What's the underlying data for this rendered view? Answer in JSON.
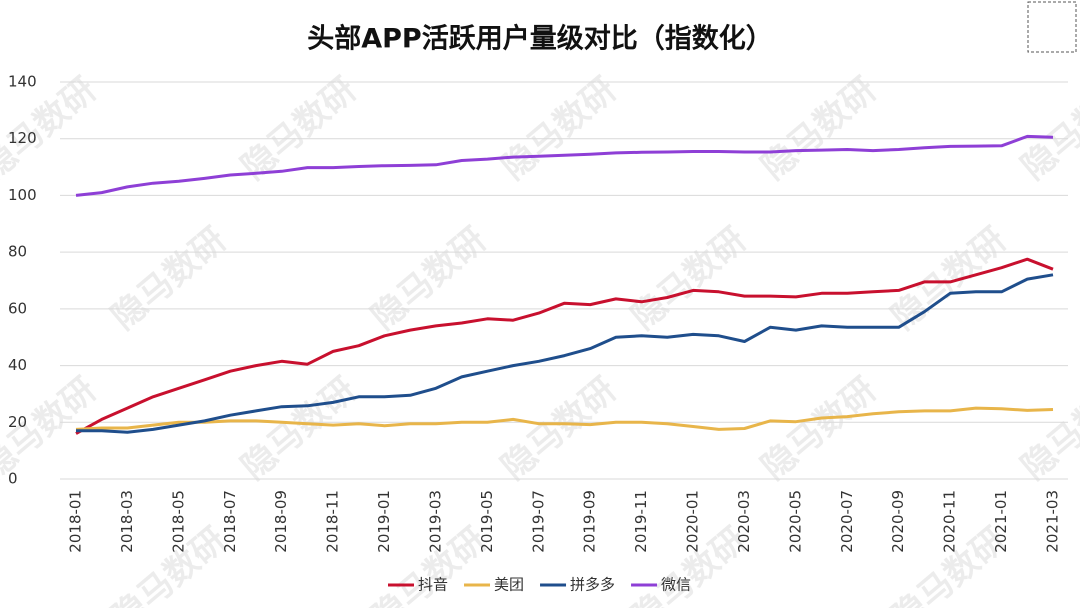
{
  "chart_data": {
    "type": "line",
    "title": "头部APP活跃用户量级对比（指数化）",
    "watermark": "隐马数研",
    "categories": [
      "2018-01",
      null,
      "2018-03",
      null,
      "2018-05",
      null,
      "2018-07",
      null,
      "2018-09",
      null,
      "2018-11",
      null,
      "2019-01",
      null,
      "2019-03",
      null,
      "2019-05",
      null,
      "2019-07",
      null,
      "2019-09",
      null,
      "2019-11",
      null,
      "2020-01",
      null,
      "2020-03",
      null,
      "2020-05",
      null,
      "2020-07",
      null,
      "2020-09",
      null,
      "2020-11",
      null,
      "2021-01",
      null,
      "2021-03"
    ],
    "series": [
      {
        "name": "抖音",
        "color": "#c8102e",
        "values": [
          16,
          21,
          25,
          29,
          32,
          35,
          38,
          40,
          41.5,
          40.5,
          45,
          47,
          50.5,
          52.5,
          54,
          55,
          56.5,
          56,
          58.5,
          62,
          61.5,
          63.5,
          62.5,
          64,
          66.5,
          66,
          64.5,
          64.5,
          64.2,
          65.5,
          65.5,
          66,
          66.5,
          69.5,
          69.5,
          72,
          74.5,
          77.5,
          74
        ]
      },
      {
        "name": "美团",
        "color": "#e8b54a",
        "values": [
          17.5,
          18,
          18,
          19,
          20,
          20,
          20.5,
          20.5,
          20,
          19.5,
          19,
          19.5,
          18.8,
          19.5,
          19.5,
          20,
          20,
          21,
          19.5,
          19.5,
          19.2,
          20,
          20,
          19.5,
          18.5,
          17.5,
          17.8,
          20.5,
          20.2,
          21.5,
          22,
          23,
          23.7,
          24,
          24,
          25,
          24.8,
          24.2,
          24.5
        ]
      },
      {
        "name": "拼多多",
        "color": "#1f4e8c",
        "values": [
          17,
          17,
          16.5,
          17.5,
          19,
          20.5,
          22.5,
          24,
          25.5,
          25.8,
          27,
          29,
          29,
          29.5,
          32,
          36,
          38,
          40,
          41.5,
          43.5,
          46,
          50,
          50.5,
          50,
          51,
          50.5,
          48.5,
          53.5,
          52.5,
          54,
          53.5,
          53.5,
          53.5,
          59,
          65.5,
          66,
          66,
          70.5,
          72
        ]
      },
      {
        "name": "微信",
        "color": "#8e3fd6",
        "values": [
          100,
          101,
          103,
          104.3,
          105,
          106,
          107.2,
          107.8,
          108.5,
          109.8,
          109.8,
          110.2,
          110.5,
          110.6,
          110.8,
          112.3,
          112.8,
          113.5,
          113.8,
          114.2,
          114.5,
          115,
          115.2,
          115.3,
          115.5,
          115.5,
          115.3,
          115.3,
          115.8,
          116,
          116.2,
          115.8,
          116.2,
          116.8,
          117.3,
          117.4,
          117.5,
          120.8,
          120.5
        ]
      }
    ],
    "ylim": [
      0,
      140
    ],
    "yticks": [
      0,
      20,
      40,
      60,
      80,
      100,
      120,
      140
    ],
    "grid": true,
    "legend": "bottom"
  }
}
